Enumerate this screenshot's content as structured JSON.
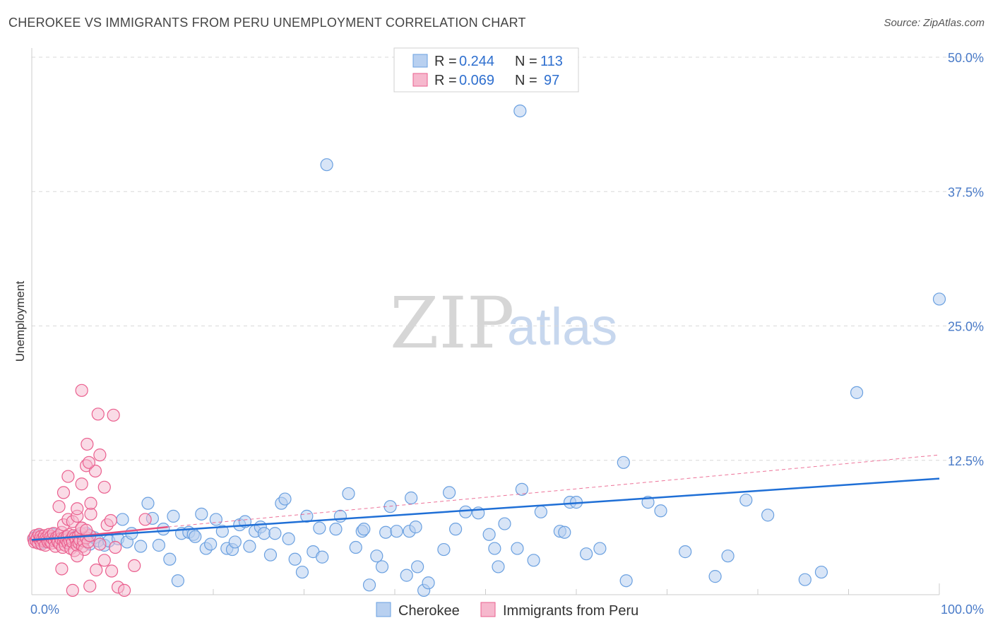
{
  "title": "CHEROKEE VS IMMIGRANTS FROM PERU UNEMPLOYMENT CORRELATION CHART",
  "source": "Source: ZipAtlas.com",
  "watermark": {
    "part1": "ZIP",
    "part2": "atlas"
  },
  "colors": {
    "blue": "#6aa0e0",
    "blue_fill": "#b8d0f0",
    "blue_line": "#1f6fd6",
    "pink": "#ea5f8e",
    "pink_fill": "#f6b8cd",
    "pink_line": "#e8507f",
    "tick": "#4a7bc8",
    "grid": "#d8d8d8"
  },
  "legend_top": [
    {
      "r_label": "R = ",
      "r_value": "0.244",
      "n_label": "N = ",
      "n_value": "113"
    },
    {
      "r_label": "R = ",
      "r_value": "0.069",
      "n_label": "N = ",
      "n_value": "97"
    }
  ],
  "chart_data": {
    "type": "scatter",
    "title": "CHEROKEE VS IMMIGRANTS FROM PERU UNEMPLOYMENT CORRELATION CHART",
    "xlabel": "",
    "ylabel": "Unemployment",
    "xlim": [
      0,
      100
    ],
    "ylim": [
      0,
      50
    ],
    "x_tick_labels": [
      "0.0%",
      "100.0%"
    ],
    "y_ticks": [
      12.5,
      25.0,
      37.5,
      50.0
    ],
    "y_tick_labels": [
      "12.5%",
      "25.0%",
      "37.5%",
      "50.0%"
    ],
    "legend_labels": [
      "Cherokee",
      "Immigrants from Peru"
    ],
    "series": [
      {
        "name": "Cherokee",
        "R": 0.244,
        "N": 113,
        "trend": {
          "x": [
            0,
            100
          ],
          "y": [
            5.1,
            10.8
          ],
          "style": "solid"
        },
        "points": [
          [
            0.3,
            5.3
          ],
          [
            0.5,
            5.0
          ],
          [
            0.8,
            5.5
          ],
          [
            1.0,
            4.8
          ],
          [
            1.2,
            5.2
          ],
          [
            1.5,
            4.9
          ],
          [
            2.0,
            5.4
          ],
          [
            2.3,
            5.6
          ],
          [
            2.8,
            5.1
          ],
          [
            3.3,
            5.0
          ],
          [
            4.0,
            4.8
          ],
          [
            4.4,
            5.3
          ],
          [
            5.0,
            5.5
          ],
          [
            5.6,
            5.1
          ],
          [
            6.0,
            5.7
          ],
          [
            6.4,
            4.7
          ],
          [
            6.9,
            5.3
          ],
          [
            7.3,
            5.0
          ],
          [
            8.0,
            4.6
          ],
          [
            8.5,
            5.0
          ],
          [
            9.5,
            5.2
          ],
          [
            10.0,
            7.0
          ],
          [
            10.5,
            4.9
          ],
          [
            11.0,
            5.7
          ],
          [
            12.0,
            4.5
          ],
          [
            12.8,
            8.5
          ],
          [
            13.3,
            7.1
          ],
          [
            14.0,
            4.6
          ],
          [
            14.5,
            6.1
          ],
          [
            15.2,
            3.3
          ],
          [
            15.6,
            7.3
          ],
          [
            16.1,
            1.3
          ],
          [
            16.5,
            5.7
          ],
          [
            17.3,
            5.8
          ],
          [
            17.8,
            5.6
          ],
          [
            18.0,
            5.4
          ],
          [
            18.7,
            7.5
          ],
          [
            19.2,
            4.3
          ],
          [
            19.7,
            4.7
          ],
          [
            20.3,
            7.0
          ],
          [
            21.0,
            5.9
          ],
          [
            21.5,
            4.3
          ],
          [
            22.1,
            4.2
          ],
          [
            22.4,
            4.9
          ],
          [
            22.9,
            6.5
          ],
          [
            23.5,
            6.8
          ],
          [
            24.0,
            4.5
          ],
          [
            24.6,
            5.9
          ],
          [
            25.2,
            6.3
          ],
          [
            25.6,
            5.7
          ],
          [
            26.3,
            3.7
          ],
          [
            26.8,
            5.7
          ],
          [
            27.5,
            8.5
          ],
          [
            27.9,
            8.9
          ],
          [
            28.3,
            5.2
          ],
          [
            29.0,
            3.3
          ],
          [
            29.8,
            2.1
          ],
          [
            30.3,
            7.3
          ],
          [
            31.0,
            4.0
          ],
          [
            31.7,
            6.2
          ],
          [
            32.0,
            3.5
          ],
          [
            32.5,
            40.0
          ],
          [
            33.5,
            6.1
          ],
          [
            34.0,
            7.3
          ],
          [
            34.9,
            9.4
          ],
          [
            35.7,
            4.4
          ],
          [
            36.4,
            5.9
          ],
          [
            36.6,
            6.1
          ],
          [
            37.2,
            0.9
          ],
          [
            38.0,
            3.6
          ],
          [
            38.6,
            2.6
          ],
          [
            39.0,
            5.8
          ],
          [
            39.5,
            8.2
          ],
          [
            40.2,
            5.9
          ],
          [
            41.3,
            1.8
          ],
          [
            41.6,
            5.9
          ],
          [
            41.8,
            9.0
          ],
          [
            42.3,
            6.3
          ],
          [
            42.5,
            2.6
          ],
          [
            43.2,
            0.4
          ],
          [
            43.7,
            1.1
          ],
          [
            45.4,
            4.2
          ],
          [
            46.0,
            9.5
          ],
          [
            46.7,
            6.1
          ],
          [
            47.8,
            7.7
          ],
          [
            49.2,
            7.6
          ],
          [
            50.4,
            5.6
          ],
          [
            51.0,
            4.3
          ],
          [
            51.4,
            2.6
          ],
          [
            52.1,
            6.6
          ],
          [
            53.5,
            4.3
          ],
          [
            53.8,
            45.0
          ],
          [
            54.0,
            9.8
          ],
          [
            55.3,
            3.2
          ],
          [
            56.1,
            7.7
          ],
          [
            58.2,
            5.9
          ],
          [
            58.7,
            5.8
          ],
          [
            59.3,
            8.6
          ],
          [
            60.0,
            8.6
          ],
          [
            61.1,
            3.8
          ],
          [
            62.6,
            4.3
          ],
          [
            65.2,
            12.3
          ],
          [
            65.5,
            1.3
          ],
          [
            67.9,
            8.6
          ],
          [
            69.3,
            7.8
          ],
          [
            72.0,
            4.0
          ],
          [
            75.3,
            1.7
          ],
          [
            76.7,
            3.6
          ],
          [
            78.7,
            8.8
          ],
          [
            81.1,
            7.4
          ],
          [
            85.2,
            1.4
          ],
          [
            87.0,
            2.1
          ],
          [
            90.9,
            18.8
          ],
          [
            100.0,
            27.5
          ]
        ]
      },
      {
        "name": "Immigrants from Peru",
        "R": 0.069,
        "N": 97,
        "trend_solid": {
          "x": [
            0,
            15
          ],
          "y": [
            5.0,
            6.3
          ]
        },
        "trend_dashed": {
          "x": [
            15,
            100
          ],
          "y": [
            6.3,
            13.0
          ]
        },
        "points": [
          [
            0.2,
            5.2
          ],
          [
            0.3,
            4.9
          ],
          [
            0.4,
            5.5
          ],
          [
            0.5,
            5.0
          ],
          [
            0.6,
            5.3
          ],
          [
            0.7,
            4.8
          ],
          [
            0.8,
            5.6
          ],
          [
            0.9,
            5.1
          ],
          [
            1.0,
            5.4
          ],
          [
            1.1,
            4.7
          ],
          [
            1.2,
            5.2
          ],
          [
            1.3,
            5.0
          ],
          [
            1.4,
            5.5
          ],
          [
            1.5,
            4.6
          ],
          [
            1.6,
            5.3
          ],
          [
            1.7,
            5.1
          ],
          [
            1.8,
            4.9
          ],
          [
            1.9,
            5.6
          ],
          [
            2.0,
            5.0
          ],
          [
            2.1,
            5.4
          ],
          [
            2.2,
            4.8
          ],
          [
            2.3,
            5.2
          ],
          [
            2.4,
            5.7
          ],
          [
            2.5,
            5.0
          ],
          [
            2.6,
            4.5
          ],
          [
            2.7,
            5.3
          ],
          [
            2.8,
            5.1
          ],
          [
            2.9,
            4.9
          ],
          [
            3.0,
            5.5
          ],
          [
            3.1,
            4.7
          ],
          [
            3.2,
            5.2
          ],
          [
            3.3,
            5.8
          ],
          [
            3.4,
            4.4
          ],
          [
            3.5,
            5.0
          ],
          [
            3.6,
            5.3
          ],
          [
            3.7,
            4.6
          ],
          [
            3.8,
            5.1
          ],
          [
            3.9,
            5.4
          ],
          [
            4.0,
            4.8
          ],
          [
            4.1,
            5.6
          ],
          [
            4.2,
            5.0
          ],
          [
            4.3,
            4.3
          ],
          [
            4.4,
            5.2
          ],
          [
            4.5,
            4.9
          ],
          [
            4.6,
            5.5
          ],
          [
            4.7,
            4.1
          ],
          [
            4.8,
            5.3
          ],
          [
            4.9,
            5.0
          ],
          [
            5.0,
            4.6
          ],
          [
            5.1,
            5.4
          ],
          [
            5.2,
            4.8
          ],
          [
            5.3,
            5.1
          ],
          [
            5.4,
            5.7
          ],
          [
            5.5,
            6.2
          ],
          [
            5.6,
            4.5
          ],
          [
            5.7,
            5.0
          ],
          [
            5.8,
            4.2
          ],
          [
            6.0,
            5.3
          ],
          [
            6.2,
            4.9
          ],
          [
            6.4,
            5.5
          ],
          [
            3.5,
            6.5
          ],
          [
            4.0,
            7.0
          ],
          [
            4.5,
            6.8
          ],
          [
            5.0,
            7.3
          ],
          [
            5.5,
            6.2
          ],
          [
            6.0,
            6.0
          ],
          [
            6.5,
            7.5
          ],
          [
            3.0,
            8.2
          ],
          [
            3.5,
            9.5
          ],
          [
            4.0,
            11.0
          ],
          [
            5.0,
            8.0
          ],
          [
            5.5,
            10.3
          ],
          [
            6.0,
            12.0
          ],
          [
            6.5,
            8.5
          ],
          [
            7.0,
            11.5
          ],
          [
            7.5,
            13.0
          ],
          [
            8.0,
            10.0
          ],
          [
            5.5,
            19.0
          ],
          [
            7.3,
            16.8
          ],
          [
            9.0,
            16.7
          ],
          [
            6.1,
            14.0
          ],
          [
            6.3,
            12.3
          ],
          [
            3.3,
            2.4
          ],
          [
            4.5,
            0.4
          ],
          [
            5.0,
            3.6
          ],
          [
            6.4,
            0.8
          ],
          [
            7.1,
            2.3
          ],
          [
            7.5,
            4.7
          ],
          [
            8.0,
            3.2
          ],
          [
            8.8,
            2.2
          ],
          [
            9.5,
            0.7
          ],
          [
            10.2,
            0.4
          ],
          [
            11.3,
            2.7
          ],
          [
            8.3,
            6.5
          ],
          [
            8.7,
            6.9
          ],
          [
            9.2,
            4.4
          ],
          [
            12.5,
            7.0
          ]
        ]
      }
    ]
  }
}
